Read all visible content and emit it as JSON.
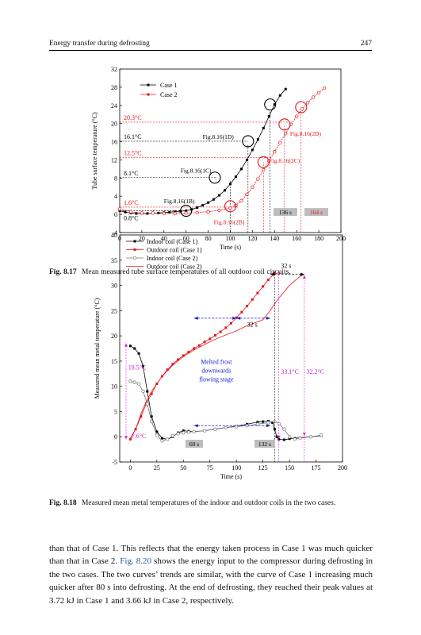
{
  "header": {
    "running_title": "Energy transfer during defrosting",
    "page_number": "247"
  },
  "figure1": {
    "caption_label": "Fig. 8.17",
    "caption_text": "Mean measured tube surface temperatures of all outdoor coil circuits.",
    "chart_data": {
      "type": "line",
      "xlabel": "Time (s)",
      "ylabel": "Tube surface temperature (°C)",
      "xlim": [
        0,
        200
      ],
      "ylim": [
        -4,
        32
      ],
      "xticks": [
        0,
        20,
        40,
        60,
        80,
        100,
        120,
        140,
        160,
        180,
        200
      ],
      "yticks": [
        -4,
        0,
        4,
        8,
        12,
        16,
        20,
        24,
        28,
        32
      ],
      "legend": "top-left",
      "series": [
        {
          "name": "Case 1",
          "color": "#000000",
          "marker": "square",
          "x": [
            0,
            5,
            10,
            15,
            20,
            25,
            30,
            35,
            40,
            45,
            50,
            55,
            60,
            65,
            70,
            75,
            80,
            85,
            90,
            95,
            100,
            105,
            110,
            115,
            120,
            125,
            130,
            135,
            140,
            145,
            150
          ],
          "y": [
            0.8,
            0.5,
            0.3,
            0.2,
            0.2,
            0.2,
            0.3,
            0.3,
            0.4,
            0.5,
            0.6,
            0.7,
            0.8,
            1.1,
            1.5,
            2.0,
            2.6,
            3.3,
            4.2,
            5.3,
            6.7,
            8.3,
            10.0,
            12.0,
            14.2,
            16.5,
            19.0,
            21.6,
            24.2,
            26.2,
            27.6
          ]
        },
        {
          "name": "Case 2",
          "color": "#e8141b",
          "marker": "circle",
          "x": [
            0,
            10,
            20,
            30,
            40,
            50,
            60,
            70,
            80,
            90,
            100,
            105,
            110,
            115,
            120,
            125,
            130,
            135,
            140,
            145,
            150,
            155,
            160,
            165,
            170,
            175,
            180,
            185
          ],
          "y": [
            1.2,
            0.6,
            0.3,
            0.3,
            0.2,
            0.2,
            0.3,
            0.4,
            0.6,
            0.9,
            1.4,
            2.0,
            3.0,
            4.4,
            6.0,
            7.8,
            9.8,
            11.8,
            13.8,
            15.8,
            17.8,
            19.8,
            21.6,
            23.2,
            24.6,
            25.8,
            26.8,
            27.8
          ]
        }
      ],
      "guide_lines": [
        {
          "label": "20.3°C",
          "value": 20.3,
          "color": "#e8141b"
        },
        {
          "label": "16.1°C",
          "value": 16.1,
          "color": "#000000"
        },
        {
          "label": "12.5°C",
          "value": 12.5,
          "color": "#e8141b"
        },
        {
          "label": "8.1°C",
          "value": 8.1,
          "color": "#000000"
        },
        {
          "label": "1.6°C",
          "value": 1.6,
          "color": "#e8141b"
        },
        {
          "label": "0.8°C",
          "value": 0.8,
          "color": "#000000"
        }
      ],
      "annotations": [
        {
          "text": "Fig.8.16(1D)",
          "color": "#000000"
        },
        {
          "text": "Fig.8.16(1C)",
          "color": "#000000"
        },
        {
          "text": "Fig.8.16(1B)",
          "color": "#000000"
        },
        {
          "text": "Fig.8.16(2D)",
          "color": "#e8141b"
        },
        {
          "text": "Fig.8.16(2C)",
          "color": "#e8141b"
        },
        {
          "text": "Fig.8.16(2B)",
          "color": "#e8141b"
        },
        {
          "text": "136 s",
          "color": "#000000"
        },
        {
          "text": "164 s",
          "color": "#e8141b"
        }
      ]
    }
  },
  "figure2": {
    "caption_label": "Fig. 8.18",
    "caption_text": "Measured mean metal temperatures of the indoor and outdoor coils in the two cases.",
    "chart_data": {
      "type": "line",
      "xlabel": "Time (s)",
      "ylabel": "Measured mean metal temperature (°C)",
      "xlim": [
        -10,
        200
      ],
      "ylim": [
        -5,
        40
      ],
      "xticks": [
        0,
        25,
        50,
        75,
        100,
        125,
        150,
        175,
        200
      ],
      "yticks": [
        -5,
        0,
        5,
        10,
        15,
        20,
        25,
        30,
        35,
        40
      ],
      "legend": "top-left",
      "series": [
        {
          "name": "Indoor coil (Case 1)",
          "color": "#000000",
          "marker": "square",
          "x": [
            0,
            4,
            8,
            12,
            16,
            20,
            25,
            30,
            35,
            40,
            45,
            50,
            55,
            60,
            70,
            80,
            90,
            100,
            110,
            120,
            125,
            130,
            134,
            136,
            138,
            140,
            145,
            150,
            155,
            160,
            170,
            180
          ],
          "y": [
            18,
            17.5,
            16.5,
            14,
            9,
            4,
            1,
            -0.3,
            -0.5,
            0,
            0.8,
            1.2,
            1.1,
            1.0,
            1.2,
            1.5,
            1.8,
            2.1,
            2.5,
            2.9,
            3.0,
            3.1,
            2.8,
            1.5,
            0,
            -0.5,
            -0.6,
            -0.4,
            -0.3,
            -0.2,
            0,
            0.2
          ]
        },
        {
          "name": "Outdoor coil (Case 1)",
          "color": "#e8141b",
          "marker": "square",
          "x": [
            0,
            5,
            10,
            15,
            20,
            25,
            30,
            35,
            40,
            45,
            50,
            55,
            60,
            65,
            70,
            75,
            80,
            85,
            90,
            95,
            100,
            105,
            110,
            115,
            120,
            125,
            130,
            135,
            136
          ],
          "y": [
            -0.5,
            1.5,
            4,
            6.5,
            8.5,
            10.5,
            12,
            13.3,
            14.4,
            15.3,
            16.1,
            16.8,
            17.5,
            18.1,
            18.8,
            19.4,
            20.1,
            20.8,
            21.6,
            22.5,
            23.6,
            24.7,
            25.9,
            27.2,
            28.5,
            29.8,
            31.1,
            32.2,
            32.4
          ]
        },
        {
          "name": "Indoor coil (Case 2)",
          "color": "#777777",
          "marker": "circle",
          "x": [
            0,
            4,
            8,
            12,
            16,
            20,
            25,
            30,
            35,
            40,
            45,
            50,
            55,
            60,
            70,
            80,
            90,
            100,
            110,
            120,
            130,
            136,
            140,
            145,
            150,
            155,
            160,
            170,
            180
          ],
          "y": [
            11,
            10.8,
            10.5,
            9,
            6.5,
            3,
            0.3,
            -0.8,
            -0.5,
            0.2,
            0.6,
            0.8,
            0.9,
            1.0,
            1.2,
            1.5,
            1.8,
            2.0,
            2.2,
            2.5,
            2.8,
            3.0,
            2.6,
            1.5,
            0,
            -0.5,
            -0.3,
            0,
            0.3
          ]
        },
        {
          "name": "Outdoor coil (Case 2)",
          "color": "#e8141b",
          "marker": "none",
          "x": [
            0,
            5,
            10,
            15,
            20,
            25,
            30,
            40,
            50,
            60,
            70,
            80,
            90,
            100,
            110,
            120,
            125,
            130,
            140,
            150,
            160,
            164
          ],
          "y": [
            -0.3,
            1.5,
            4.5,
            7,
            9,
            10.5,
            12,
            14.2,
            15.9,
            17.2,
            18.3,
            19.3,
            20.2,
            21,
            22,
            22.8,
            23.2,
            24.5,
            27.5,
            30,
            31.8,
            32.2
          ]
        }
      ],
      "annotations": [
        {
          "text": "18.5°C",
          "color": "#cc22cc"
        },
        {
          "text": "7.6°C",
          "color": "#cc22cc"
        },
        {
          "text": "33.1°C",
          "color": "#cc22cc"
        },
        {
          "text": "32.2°C",
          "color": "#cc22cc"
        },
        {
          "text": "32 s",
          "color": "#000000"
        },
        {
          "text": "32 s",
          "color": "#000000"
        },
        {
          "text": "60 s",
          "color": "#000000"
        },
        {
          "text": "132 s",
          "color": "#000000"
        },
        {
          "text": "Melted frost downwards flowing stage",
          "color": "#1a22cc"
        }
      ]
    }
  },
  "body": {
    "text_before_link": "than that of Case 1. This reflects that the energy taken process in Case 1 was much quicker than that in Case 2. ",
    "link": "Fig. 8.20",
    "text_after_link": " shows the energy input to the compressor during defrosting in the two cases. The two curves’ trends are similar, with the curve of Case 1 increasing much quicker after 80 s into defrosting. At the end of defrosting, they reached their peak values at 3.72 kJ in Case 1 and 3.66 kJ in Case 2, respectively."
  }
}
